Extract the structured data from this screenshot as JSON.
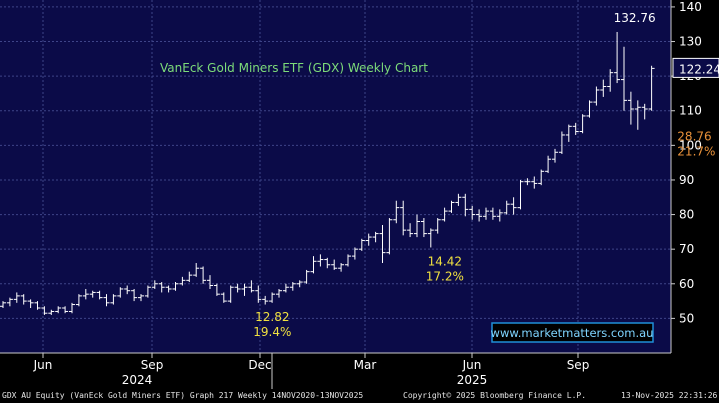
{
  "chart_data": {
    "type": "ohlc",
    "title": "VanEck Gold Miners ETF (GDX) Weekly Chart",
    "ylim": [
      40,
      142
    ],
    "yticks": [
      50,
      60,
      70,
      80,
      90,
      100,
      110,
      120,
      130,
      140
    ],
    "month_ticks": [
      "Jun",
      "Sep",
      "Dec",
      "Mar",
      "Jun",
      "Sep"
    ],
    "year_labels": [
      "2024",
      "2025"
    ],
    "last_price": "122.24",
    "grid": true,
    "colors": {
      "background": "#0b0b48",
      "grid": "#3e4488",
      "bars": "#ffffff",
      "annotation_yellow": "#f0e040",
      "annotation_orange": "#e8913a",
      "title_green": "#7ddc7a",
      "website_box": "#1f8fd8"
    },
    "bars": [
      [
        53.5,
        55,
        53,
        54.5
      ],
      [
        54.5,
        56,
        53.5,
        55.5
      ],
      [
        55.5,
        57.5,
        54.5,
        56.5
      ],
      [
        56.5,
        57,
        54,
        55
      ],
      [
        55,
        55.5,
        53,
        54.5
      ],
      [
        54.5,
        55,
        52.5,
        53
      ],
      [
        53,
        53.5,
        51,
        51.5
      ],
      [
        51.5,
        52.5,
        51,
        52
      ],
      [
        52,
        53.5,
        51.5,
        53
      ],
      [
        53,
        53.5,
        51.5,
        52
      ],
      [
        52,
        54.5,
        51.5,
        54
      ],
      [
        54,
        57,
        53.5,
        56.5
      ],
      [
        56.5,
        58.5,
        55.5,
        57
      ],
      [
        57,
        58,
        56,
        57.5
      ],
      [
        57.5,
        58,
        55.5,
        56
      ],
      [
        56,
        57,
        53.5,
        54.5
      ],
      [
        54.5,
        57,
        54,
        56.5
      ],
      [
        56.5,
        59,
        56,
        58.5
      ],
      [
        58.5,
        59.5,
        57,
        58
      ],
      [
        58,
        58.5,
        55,
        56
      ],
      [
        56,
        57,
        55,
        56.5
      ],
      [
        56.5,
        59.5,
        56,
        59
      ],
      [
        59,
        61,
        58.5,
        60
      ],
      [
        60,
        60.5,
        57.5,
        59
      ],
      [
        59,
        59.5,
        57.5,
        58.5
      ],
      [
        58.5,
        60.5,
        58,
        60
      ],
      [
        60,
        62,
        59.5,
        61
      ],
      [
        61,
        63.5,
        60.5,
        62.5
      ],
      [
        62.5,
        66,
        62,
        64.5
      ],
      [
        64.5,
        65,
        60,
        61
      ],
      [
        61,
        62.5,
        58.5,
        59.5
      ],
      [
        59.5,
        60,
        56.5,
        57
      ],
      [
        57,
        57.5,
        54.5,
        55
      ],
      [
        55,
        59.5,
        54.5,
        59
      ],
      [
        59,
        60,
        57.5,
        58.5
      ],
      [
        58.5,
        60,
        56.5,
        59
      ],
      [
        59,
        61,
        57.5,
        58
      ],
      [
        58,
        59.5,
        54.5,
        55.5
      ],
      [
        55.5,
        56.5,
        54,
        55
      ],
      [
        55,
        57.5,
        54.5,
        57
      ],
      [
        57,
        58.5,
        56,
        58
      ],
      [
        58,
        60,
        57.5,
        59
      ],
      [
        59,
        60.5,
        58,
        60
      ],
      [
        60,
        61,
        59,
        60.5
      ],
      [
        60.5,
        64,
        60,
        63.5
      ],
      [
        63.5,
        68,
        63,
        66.5
      ],
      [
        66.5,
        68.5,
        65,
        67
      ],
      [
        67,
        67.5,
        64.5,
        65.5
      ],
      [
        65.5,
        67,
        64,
        64.5
      ],
      [
        64.5,
        66,
        63.5,
        65.5
      ],
      [
        65.5,
        68.5,
        65,
        68
      ],
      [
        68,
        70.5,
        67,
        70
      ],
      [
        70,
        73,
        69.5,
        72.5
      ],
      [
        72.5,
        74.5,
        71,
        73.5
      ],
      [
        73.5,
        75,
        72,
        74.5
      ],
      [
        74.5,
        77,
        66,
        69
      ],
      [
        69,
        79,
        68.5,
        78.5
      ],
      [
        78.5,
        84,
        77.5,
        82
      ],
      [
        82,
        84,
        74,
        75.5
      ],
      [
        75.5,
        77.5,
        73.5,
        74.5
      ],
      [
        74.5,
        80,
        73.5,
        78
      ],
      [
        78,
        79,
        73.5,
        74.5
      ],
      [
        74.5,
        76,
        70.5,
        75.5
      ],
      [
        75.5,
        79,
        74.5,
        78.5
      ],
      [
        78.5,
        82,
        78,
        81
      ],
      [
        81,
        84,
        80.5,
        83.5
      ],
      [
        83.5,
        86,
        82.5,
        85
      ],
      [
        85,
        86,
        79.5,
        81.5
      ],
      [
        81.5,
        82.5,
        78.5,
        80
      ],
      [
        80,
        81.5,
        78,
        79.5
      ],
      [
        79.5,
        82,
        78.5,
        81
      ],
      [
        81,
        82,
        78.5,
        79.5
      ],
      [
        79.5,
        81.5,
        78,
        80.5
      ],
      [
        80.5,
        84,
        80,
        83
      ],
      [
        83,
        85,
        80,
        82
      ],
      [
        82,
        90,
        81.5,
        89.5
      ],
      [
        89.5,
        90.5,
        88.5,
        89.5
      ],
      [
        89.5,
        91,
        87.5,
        89
      ],
      [
        89,
        93,
        88.5,
        92.5
      ],
      [
        92.5,
        97,
        92,
        96
      ],
      [
        96,
        99,
        95,
        98
      ],
      [
        98,
        104,
        97.5,
        103
      ],
      [
        103,
        106,
        101,
        105.5
      ],
      [
        105.5,
        106.5,
        103,
        104
      ],
      [
        104,
        109,
        103.5,
        108.5
      ],
      [
        108.5,
        113,
        108,
        112.5
      ],
      [
        112.5,
        117,
        111.5,
        116
      ],
      [
        116,
        119,
        114,
        117
      ],
      [
        117,
        122,
        115.5,
        121
      ],
      [
        121,
        132.76,
        118,
        119
      ],
      [
        119,
        128.5,
        110,
        113
      ],
      [
        113,
        115.5,
        106,
        110.5
      ],
      [
        110.5,
        113,
        104.5,
        111
      ],
      [
        111,
        112,
        107.5,
        110.5
      ],
      [
        110.5,
        123,
        110,
        122.24
      ]
    ],
    "annotations": [
      {
        "text": "132.76",
        "color": "white",
        "x": 94,
        "y": 132.76,
        "pos": "above"
      },
      {
        "text": "28.76",
        "color": "orange",
        "x": 97,
        "y": 106,
        "pos": "right"
      },
      {
        "text": "21.7%",
        "color": "orange",
        "x": 97,
        "y": 106,
        "pos": "right2"
      },
      {
        "text": "14.42",
        "color": "yellow",
        "x": 62,
        "y": 70.5,
        "pos": "below"
      },
      {
        "text": "17.2%",
        "color": "yellow",
        "x": 62,
        "y": 70.5,
        "pos": "below2"
      },
      {
        "text": "12.82",
        "color": "yellow",
        "x": 37,
        "y": 54.5,
        "pos": "below"
      },
      {
        "text": "19.4%",
        "color": "yellow",
        "x": 37,
        "y": 54.5,
        "pos": "below2"
      }
    ],
    "website": "www.marketmatters.com.au"
  },
  "footer": {
    "left": "GDX AU Equity (VanEck Gold Miners ETF) Graph 217 Weekly 14NOV2020-13NOV2025",
    "center": "Copyright© 2025 Bloomberg Finance L.P.",
    "right": "13-Nov-2025 22:31:26"
  }
}
